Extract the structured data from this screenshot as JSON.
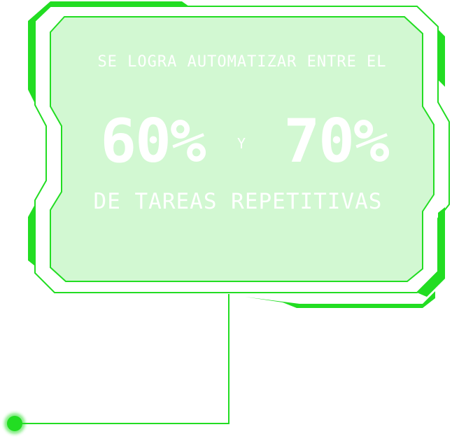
{
  "panel": {
    "line1": "SE LOGRA AUTOMATIZAR ENTRE EL",
    "value1": "60%",
    "conjunction": "Y",
    "value2": "70%",
    "line3": "DE TAREAS REPETITIVAS"
  },
  "colors": {
    "accent": "#22dd22",
    "panel_fill": "#d2f8d2",
    "text": "#ffffff"
  }
}
